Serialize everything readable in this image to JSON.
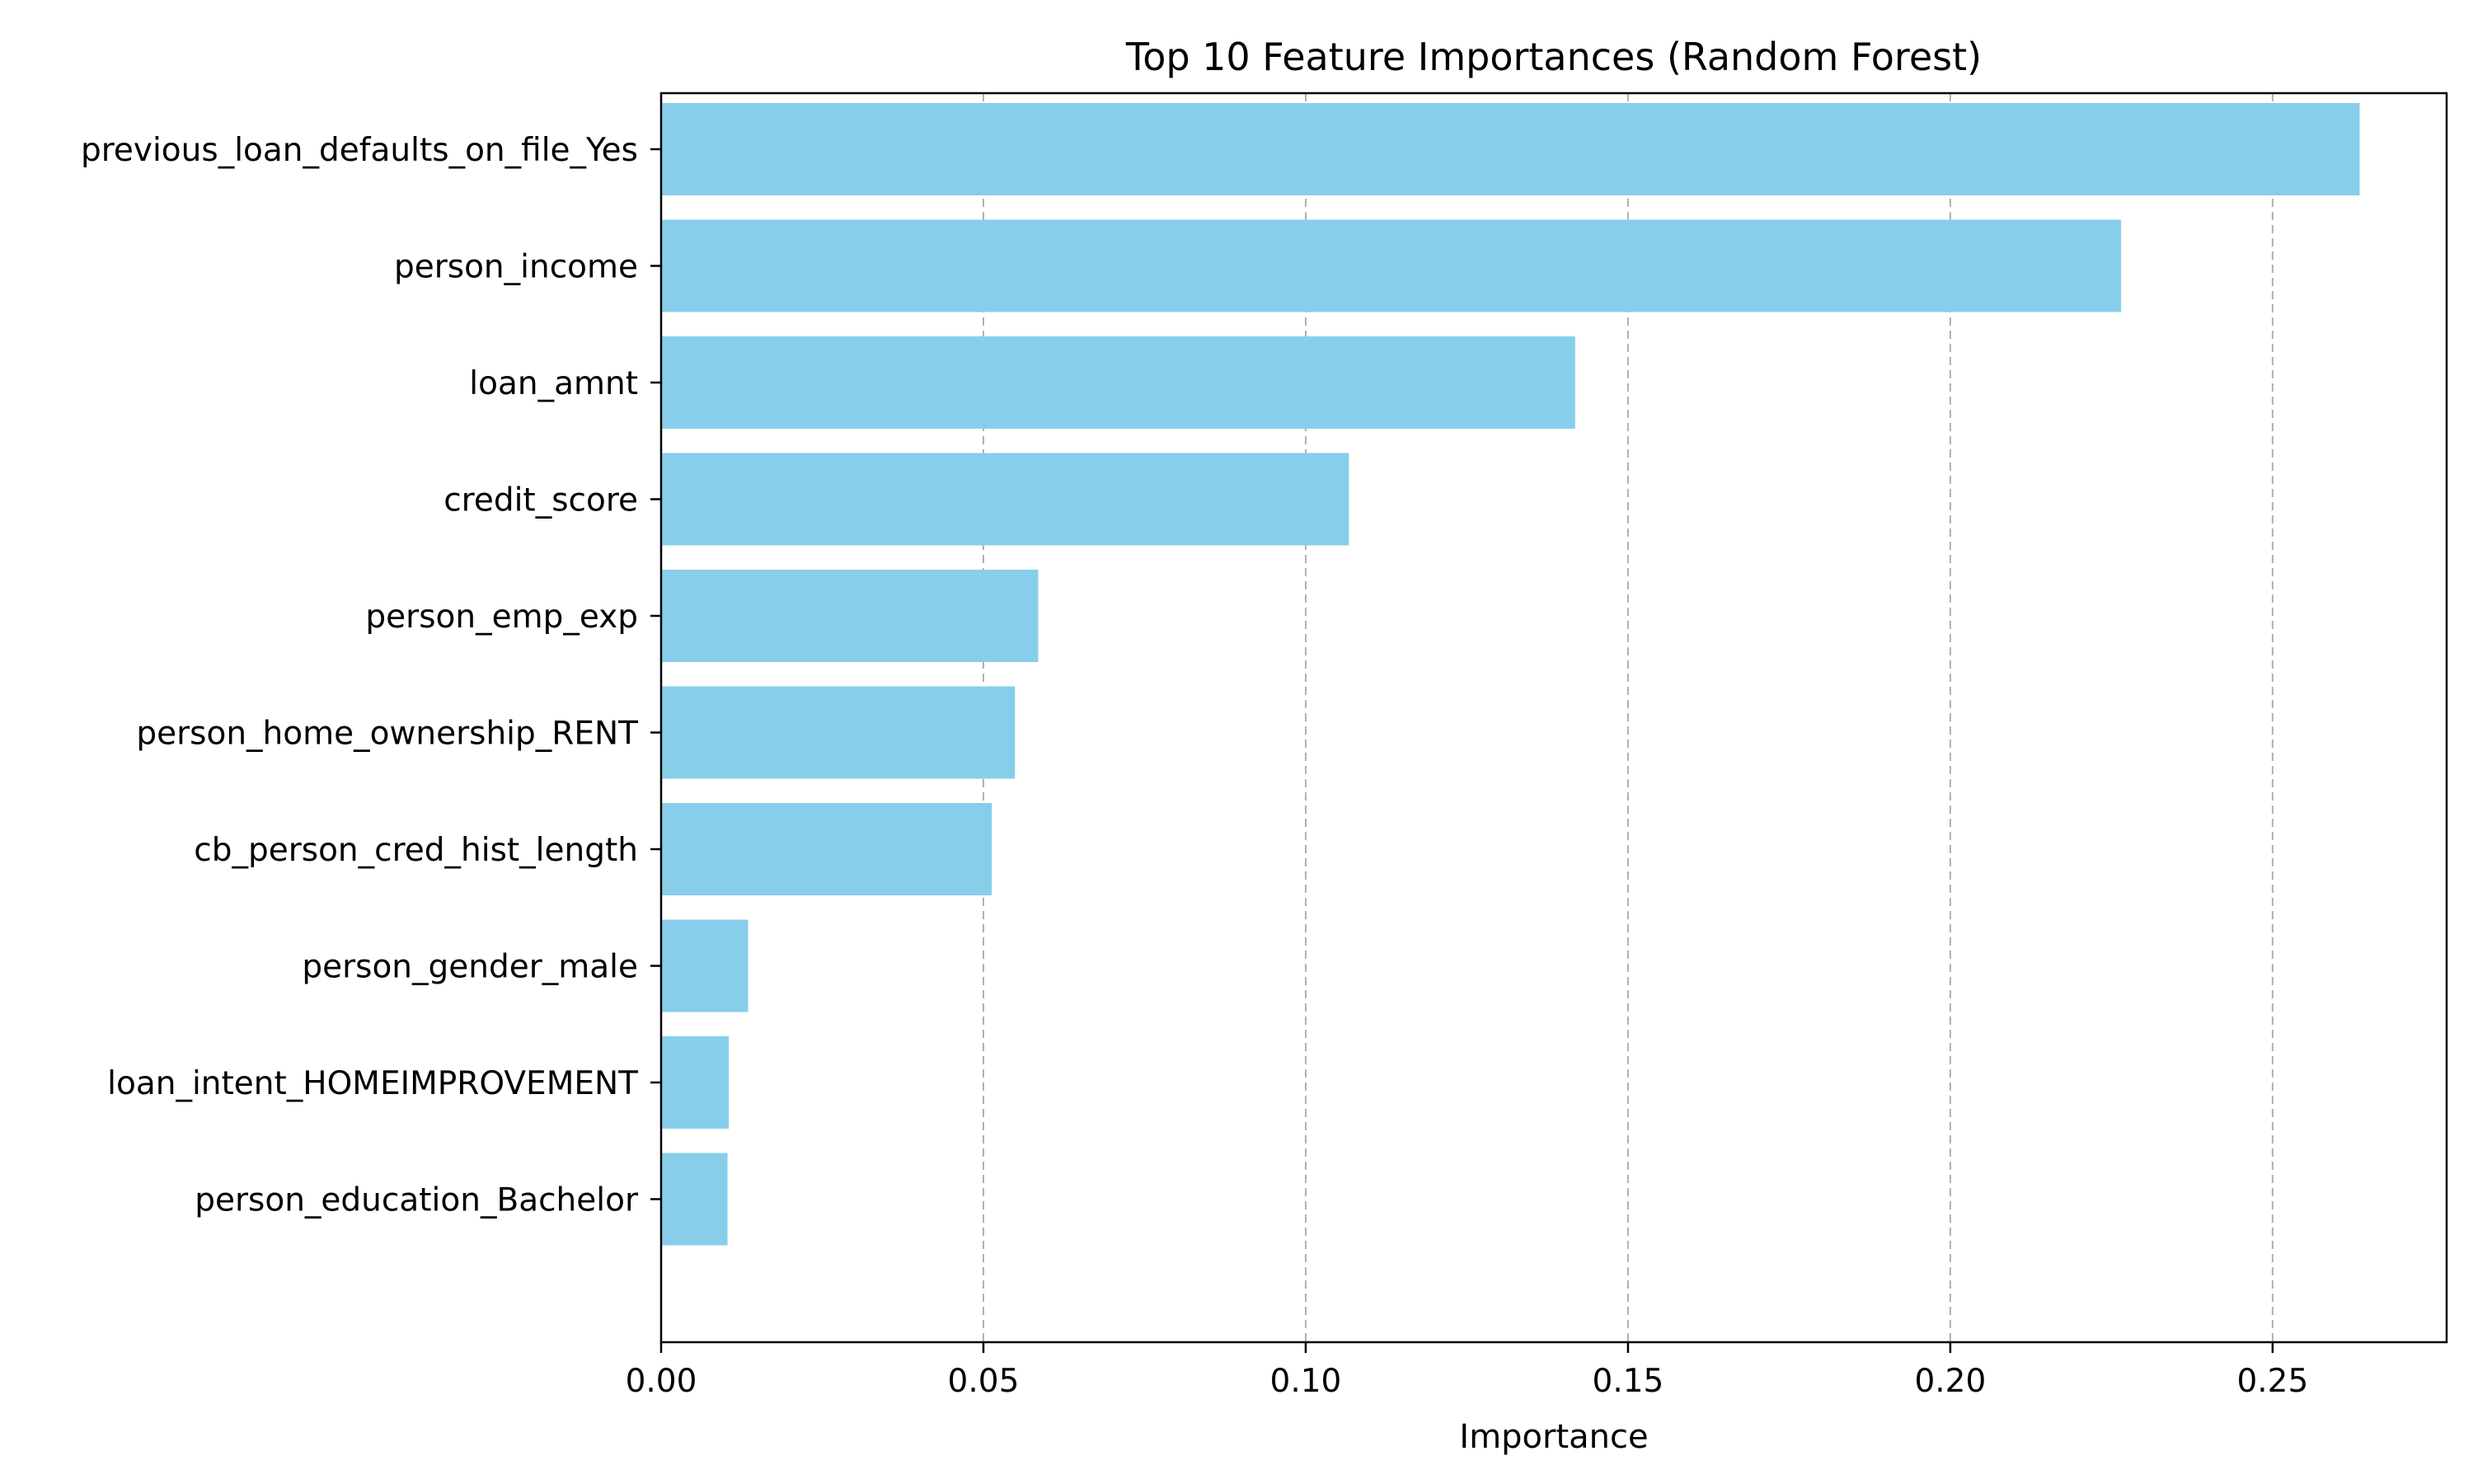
{
  "chart_data": {
    "type": "bar",
    "orientation": "horizontal",
    "title": "Top 10 Feature Importances (Random Forest)",
    "xlabel": "Importance",
    "ylabel": "",
    "xlim": [
      0,
      0.277
    ],
    "x_ticks": [
      0.0,
      0.05,
      0.1,
      0.15,
      0.2,
      0.25
    ],
    "x_tick_labels": [
      "0.00",
      "0.05",
      "0.10",
      "0.15",
      "0.20",
      "0.25"
    ],
    "grid": "x-axis, dashed",
    "bar_color": "#87ceeb",
    "categories": [
      "previous_loan_defaults_on_file_Yes",
      "person_income",
      "loan_amnt",
      "credit_score",
      "person_emp_exp",
      "person_home_ownership_RENT",
      "cb_person_cred_hist_length",
      "person_gender_male",
      "loan_intent_HOMEIMPROVEMENT",
      "person_education_Bachelor"
    ],
    "values": [
      0.2635,
      0.2265,
      0.1418,
      0.1067,
      0.0585,
      0.0549,
      0.0513,
      0.0135,
      0.0105,
      0.0103
    ]
  }
}
